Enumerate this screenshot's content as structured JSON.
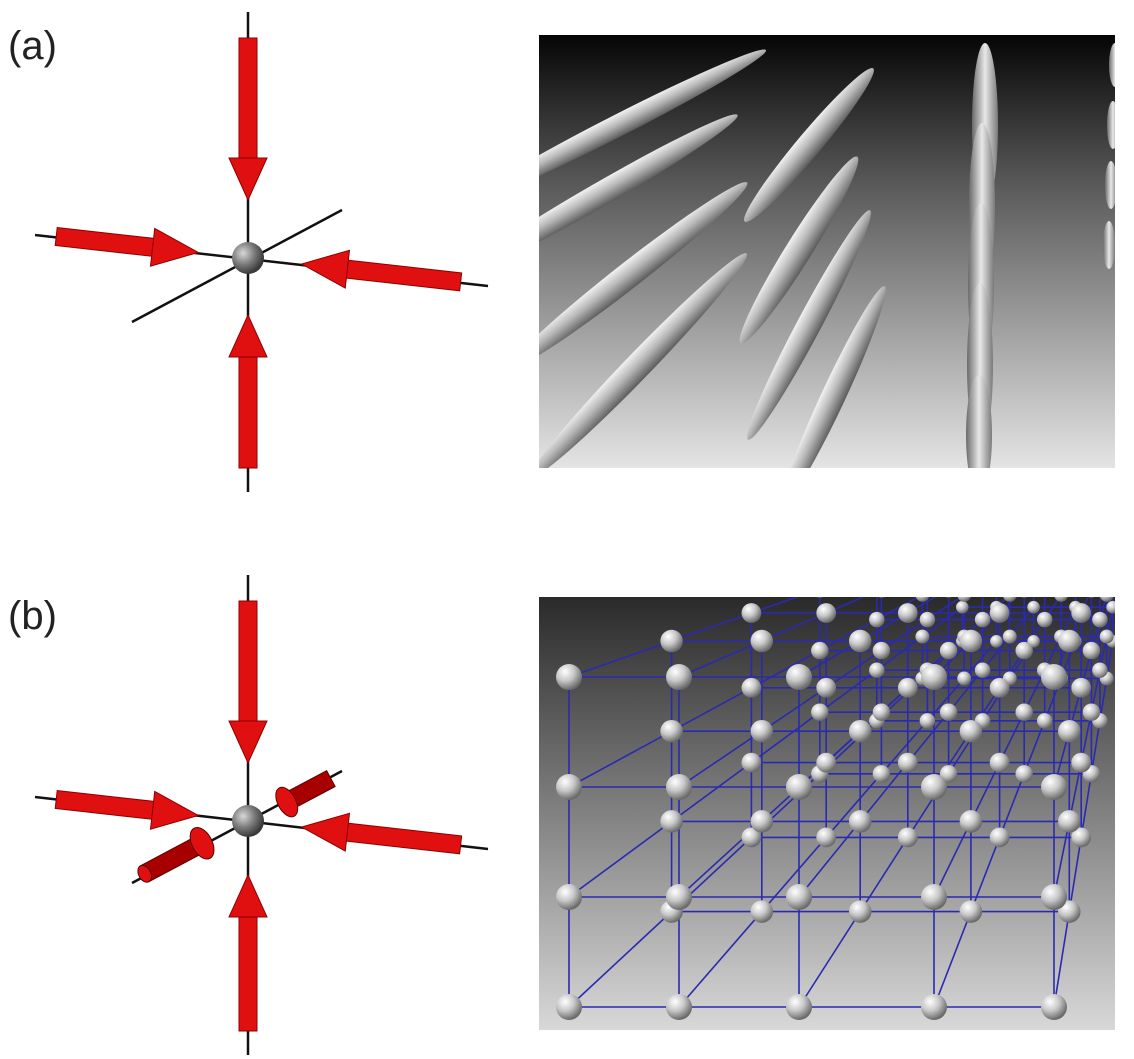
{
  "panels": [
    {
      "label": "(a)"
    },
    {
      "label": "(b)"
    }
  ],
  "colors": {
    "arrow": "#e01010",
    "arrow_dark": "#8c0000",
    "axis": "#111111",
    "lattice_line": "#2a2ab0",
    "sphere": "#cfcfcf"
  }
}
